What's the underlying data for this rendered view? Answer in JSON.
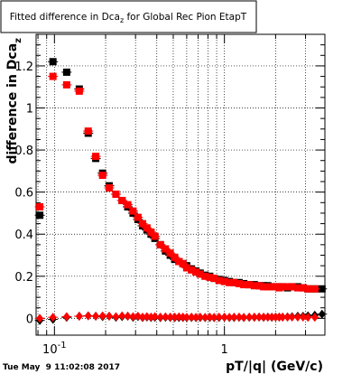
{
  "chart_data": {
    "type": "scatter",
    "title": "Fitted difference in Dca",
    "title_subscript": "z",
    "title_suffix": " for Global Rec Pion EtapT",
    "xlabel": "pT/|q| (GeV/c)",
    "ylabel": "difference in Dca",
    "ylabel_subscript": "z",
    "x_scale": "log",
    "xlim": [
      0.078,
      3.9
    ],
    "ylim": [
      -0.08,
      1.35
    ],
    "grid": true,
    "x_ticks": [
      {
        "value": 0.1,
        "label": "10",
        "sup": "-1"
      },
      {
        "value": 1,
        "label": "1",
        "sup": ""
      }
    ],
    "y_ticks": [
      {
        "value": 0,
        "label": "0"
      },
      {
        "value": 0.2,
        "label": "0.2"
      },
      {
        "value": 0.4,
        "label": "0.4"
      },
      {
        "value": 0.6,
        "label": "0.6"
      },
      {
        "value": 0.8,
        "label": "0.8"
      },
      {
        "value": 1.0,
        "label": "1"
      },
      {
        "value": 1.2,
        "label": "1.2"
      }
    ],
    "series": [
      {
        "color": "#000000",
        "marker": "square",
        "x": [
          0.082,
          0.098,
          0.118,
          0.14,
          0.158,
          0.175,
          0.192,
          0.21,
          0.23,
          0.25,
          0.27,
          0.29,
          0.31,
          0.33,
          0.35,
          0.37,
          0.39,
          0.42,
          0.45,
          0.48,
          0.51,
          0.54,
          0.57,
          0.6,
          0.64,
          0.68,
          0.72,
          0.77,
          0.82,
          0.87,
          0.93,
          1.0,
          1.07,
          1.14,
          1.22,
          1.3,
          1.4,
          1.5,
          1.6,
          1.7,
          1.8,
          1.9,
          2.0,
          2.1,
          2.2,
          2.35,
          2.5,
          2.7,
          2.9,
          3.1,
          3.4,
          3.75
        ],
        "y": [
          0.49,
          1.22,
          1.17,
          1.09,
          0.88,
          0.76,
          0.69,
          0.63,
          0.59,
          0.56,
          0.53,
          0.5,
          0.47,
          0.44,
          0.42,
          0.4,
          0.38,
          0.35,
          0.32,
          0.3,
          0.28,
          0.27,
          0.26,
          0.25,
          0.235,
          0.225,
          0.215,
          0.205,
          0.2,
          0.19,
          0.185,
          0.18,
          0.175,
          0.17,
          0.17,
          0.165,
          0.16,
          0.16,
          0.155,
          0.155,
          0.155,
          0.15,
          0.15,
          0.15,
          0.15,
          0.145,
          0.15,
          0.15,
          0.145,
          0.14,
          0.14,
          0.14
        ]
      },
      {
        "color": "#ff0000",
        "marker": "square",
        "x": [
          0.082,
          0.098,
          0.118,
          0.14,
          0.158,
          0.175,
          0.192,
          0.21,
          0.23,
          0.25,
          0.27,
          0.29,
          0.31,
          0.33,
          0.35,
          0.37,
          0.39,
          0.42,
          0.45,
          0.48,
          0.51,
          0.54,
          0.57,
          0.6,
          0.64,
          0.68,
          0.72,
          0.77,
          0.82,
          0.87,
          0.93,
          1.0,
          1.07,
          1.14,
          1.22,
          1.3,
          1.4,
          1.5,
          1.6,
          1.7,
          1.8,
          1.9,
          2.0,
          2.1,
          2.2,
          2.35,
          2.5,
          2.7,
          2.9,
          3.1,
          3.4
        ],
        "y": [
          0.53,
          1.15,
          1.11,
          1.08,
          0.89,
          0.77,
          0.68,
          0.62,
          0.59,
          0.56,
          0.54,
          0.51,
          0.48,
          0.45,
          0.43,
          0.41,
          0.39,
          0.35,
          0.33,
          0.31,
          0.29,
          0.27,
          0.26,
          0.24,
          0.23,
          0.22,
          0.21,
          0.2,
          0.195,
          0.19,
          0.18,
          0.175,
          0.17,
          0.17,
          0.165,
          0.16,
          0.16,
          0.155,
          0.155,
          0.15,
          0.15,
          0.15,
          0.15,
          0.145,
          0.15,
          0.15,
          0.15,
          0.145,
          0.145,
          0.14,
          0.14
        ]
      },
      {
        "color": "#000000",
        "marker": "diamond",
        "x": [
          0.082,
          0.098,
          0.118,
          0.14,
          0.158,
          0.175,
          0.192,
          0.21,
          0.23,
          0.25,
          0.27,
          0.29,
          0.31,
          0.33,
          0.35,
          0.37,
          0.39,
          0.42,
          0.45,
          0.48,
          0.51,
          0.54,
          0.57,
          0.6,
          0.64,
          0.68,
          0.72,
          0.77,
          0.82,
          0.87,
          0.93,
          1.0,
          1.07,
          1.14,
          1.22,
          1.3,
          1.4,
          1.5,
          1.6,
          1.7,
          1.8,
          1.9,
          2.0,
          2.1,
          2.2,
          2.35,
          2.5,
          2.7,
          2.9,
          3.1,
          3.4,
          3.75
        ],
        "y": [
          -0.01,
          -0.005,
          0.005,
          0.01,
          0.012,
          0.01,
          0.008,
          0.01,
          0.005,
          0.008,
          0.01,
          0.005,
          0.008,
          0.004,
          0.006,
          0.004,
          0.005,
          0.003,
          0.005,
          0.004,
          0.003,
          0.004,
          0.004,
          0.003,
          0.004,
          0.003,
          0.004,
          0.003,
          0.004,
          0.003,
          0.004,
          0.005,
          0.004,
          0.004,
          0.005,
          0.004,
          0.005,
          0.005,
          0.006,
          0.005,
          0.006,
          0.005,
          0.006,
          0.006,
          0.006,
          0.007,
          0.008,
          0.01,
          0.01,
          0.012,
          0.015,
          0.02
        ]
      },
      {
        "color": "#ff0000",
        "marker": "diamond",
        "x": [
          0.082,
          0.098,
          0.118,
          0.14,
          0.158,
          0.175,
          0.192,
          0.21,
          0.23,
          0.25,
          0.27,
          0.29,
          0.31,
          0.33,
          0.35,
          0.37,
          0.39,
          0.42,
          0.45,
          0.48,
          0.51,
          0.54,
          0.57,
          0.6,
          0.64,
          0.68,
          0.72,
          0.77,
          0.82,
          0.87,
          0.93,
          1.0,
          1.07,
          1.14,
          1.22,
          1.3,
          1.4,
          1.5,
          1.6,
          1.7,
          1.8,
          1.9,
          2.0,
          2.1,
          2.2,
          2.35,
          2.5,
          2.7,
          2.9,
          3.1,
          3.4
        ],
        "y": [
          0.0,
          0.005,
          0.008,
          0.01,
          0.012,
          0.01,
          0.012,
          0.01,
          0.008,
          0.012,
          0.01,
          0.008,
          0.01,
          0.006,
          0.008,
          0.006,
          0.008,
          0.006,
          0.007,
          0.006,
          0.006,
          0.007,
          0.006,
          0.005,
          0.006,
          0.005,
          0.006,
          0.005,
          0.006,
          0.005,
          0.006,
          0.006,
          0.005,
          0.006,
          0.006,
          0.005,
          0.006,
          0.006,
          0.006,
          0.006,
          0.006,
          0.006,
          0.006,
          0.006,
          0.006,
          0.006,
          0.006,
          0.006,
          0.006,
          0.005,
          0.005
        ]
      }
    ]
  },
  "timestamp": "Tue May  9 11:02:08 2017"
}
